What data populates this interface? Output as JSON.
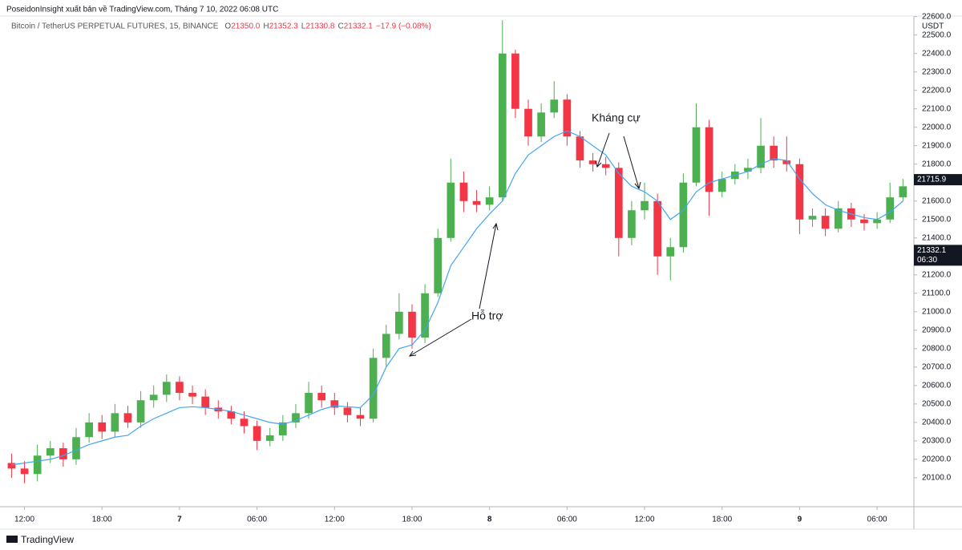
{
  "header": {
    "publisher": "PoseidonInsight xuất bản về TradingView.com, Tháng 7 10, 2022 06:08 UTC",
    "symbol": "Bitcoin / TetherUS PERPETUAL FUTURES, 15, BINANCE",
    "ohlc": [
      {
        "key": "O",
        "value": "21350.0"
      },
      {
        "key": "H",
        "value": "21352.3"
      },
      {
        "key": "L",
        "value": "21330.8"
      },
      {
        "key": "C",
        "value": "21332.1"
      }
    ],
    "change": "−17.9 (−0.08%)"
  },
  "footer": {
    "brand": "TradingView"
  },
  "chart_data": {
    "type": "candlestick",
    "y_unit": "USDT",
    "up_color": "#4caf50",
    "down_color": "#f23645",
    "x": [
      11,
      12,
      13,
      14,
      15,
      16,
      17,
      18,
      19,
      20,
      21,
      22,
      23,
      24,
      25,
      26,
      27,
      28,
      29,
      30,
      31,
      32,
      33,
      34,
      35,
      36,
      37,
      38,
      39,
      40,
      41,
      42,
      43,
      44,
      45,
      46,
      47,
      48,
      49,
      50,
      51,
      52,
      53,
      54,
      55,
      56,
      57,
      58,
      59,
      60,
      61,
      62,
      63,
      64,
      65,
      66,
      67,
      68,
      69,
      70,
      71,
      72,
      73,
      74,
      75,
      76,
      77,
      78,
      79,
      80
    ],
    "open": [
      20180,
      20150,
      20120,
      20220,
      20260,
      20200,
      20320,
      20400,
      20350,
      20450,
      20400,
      20520,
      20550,
      20620,
      20560,
      20540,
      20480,
      20460,
      20420,
      20380,
      20300,
      20330,
      20400,
      20450,
      20560,
      20520,
      20480,
      20440,
      20420,
      20750,
      20880,
      21000,
      20860,
      21100,
      21400,
      21700,
      21600,
      21580,
      21620,
      22400,
      22100,
      21950,
      22080,
      22150,
      21950,
      21820,
      21800,
      21780,
      21400,
      21550,
      21600,
      21300,
      21350,
      21700,
      22000,
      21650,
      21720,
      21760,
      21780,
      21900,
      21820,
      21800,
      21500,
      21520,
      21450,
      21560,
      21500,
      21480,
      21500,
      21620
    ],
    "high": [
      20230,
      20190,
      20280,
      20300,
      20290,
      20370,
      20450,
      20440,
      20500,
      20490,
      20570,
      20600,
      20660,
      20650,
      20600,
      20580,
      20520,
      20490,
      20460,
      20410,
      20370,
      20440,
      20500,
      20620,
      20600,
      20560,
      20510,
      20480,
      20800,
      20930,
      21100,
      21040,
      21150,
      21450,
      21830,
      21760,
      21660,
      21680,
      22580,
      22420,
      22150,
      22130,
      22250,
      22180,
      21980,
      21860,
      21840,
      21810,
      21600,
      21700,
      21640,
      21400,
      21750,
      22130,
      22040,
      21760,
      21800,
      21830,
      22050,
      21950,
      21950,
      21830,
      21560,
      21560,
      21600,
      21590,
      21530,
      21540,
      21700,
      21720
    ],
    "low": [
      20100,
      20070,
      20080,
      20180,
      20160,
      20170,
      20290,
      20310,
      20320,
      20370,
      20370,
      20480,
      20510,
      20520,
      20500,
      20440,
      20420,
      20390,
      20340,
      20250,
      20270,
      20300,
      20370,
      20420,
      20480,
      20440,
      20400,
      20380,
      20400,
      20700,
      20850,
      20800,
      20830,
      21080,
      21380,
      21540,
      21540,
      21550,
      21600,
      22050,
      21900,
      21920,
      22050,
      21900,
      21780,
      21760,
      21740,
      21300,
      21360,
      21500,
      21200,
      21170,
      21320,
      21680,
      21520,
      21620,
      21690,
      21720,
      21750,
      21780,
      21760,
      21420,
      21460,
      21410,
      21430,
      21460,
      21440,
      21450,
      21480,
      21600
    ],
    "close": [
      20150,
      20120,
      20220,
      20260,
      20200,
      20320,
      20400,
      20350,
      20450,
      20400,
      20520,
      20550,
      20620,
      20560,
      20540,
      20480,
      20460,
      20420,
      20380,
      20300,
      20330,
      20400,
      20450,
      20560,
      20520,
      20480,
      20440,
      20420,
      20750,
      20880,
      21000,
      20860,
      21100,
      21400,
      21700,
      21600,
      21580,
      21620,
      22400,
      22100,
      21950,
      22080,
      22150,
      21950,
      21820,
      21800,
      21780,
      21400,
      21550,
      21600,
      21300,
      21350,
      21700,
      22000,
      21650,
      21720,
      21760,
      21780,
      21900,
      21820,
      21800,
      21500,
      21520,
      21450,
      21560,
      21500,
      21480,
      21500,
      21620,
      21680
    ],
    "moving_average": {
      "color": "#42a5f5",
      "values": [
        20170,
        20180,
        20190,
        20200,
        20220,
        20250,
        20280,
        20300,
        20320,
        20330,
        20380,
        20420,
        20450,
        20480,
        20485,
        20480,
        20470,
        20460,
        20440,
        20420,
        20400,
        20390,
        20410,
        20440,
        20470,
        20490,
        20485,
        20480,
        20550,
        20700,
        20800,
        20820,
        20900,
        21050,
        21250,
        21350,
        21450,
        21530,
        21600,
        21750,
        21850,
        21900,
        21950,
        21980,
        21950,
        21900,
        21850,
        21750,
        21680,
        21650,
        21600,
        21500,
        21550,
        21650,
        21700,
        21720,
        21740,
        21760,
        21800,
        21830,
        21820,
        21720,
        21640,
        21580,
        21550,
        21530,
        21510,
        21500,
        21540,
        21600
      ]
    },
    "xlim": [
      10.6,
      80.85
    ],
    "ylim": [
      19943,
      22603
    ],
    "xticks": [
      {
        "value": 12,
        "label": "12:00"
      },
      {
        "value": 18,
        "label": "18:00"
      },
      {
        "value": 24,
        "label": "7"
      },
      {
        "value": 30,
        "label": "06:00"
      },
      {
        "value": 36,
        "label": "12:00"
      },
      {
        "value": 42,
        "label": "18:00"
      },
      {
        "value": 48,
        "label": "8"
      },
      {
        "value": 54,
        "label": "06:00"
      },
      {
        "value": 60,
        "label": "12:00"
      },
      {
        "value": 66,
        "label": "18:00"
      },
      {
        "value": 72,
        "label": "9"
      },
      {
        "value": 78,
        "label": "06:00"
      }
    ],
    "yticks": [
      {
        "value": 20100,
        "label": "20100.0"
      },
      {
        "value": 20200,
        "label": "20200.0"
      },
      {
        "value": 20300,
        "label": "20300.0"
      },
      {
        "value": 20400,
        "label": "20400.0"
      },
      {
        "value": 20500,
        "label": "20500.0"
      },
      {
        "value": 20600,
        "label": "20600.0"
      },
      {
        "value": 20700,
        "label": "20700.0"
      },
      {
        "value": 20800,
        "label": "20800.0"
      },
      {
        "value": 20900,
        "label": "20900.0"
      },
      {
        "value": 21000,
        "label": "21000.0"
      },
      {
        "value": 21100,
        "label": "21100.0"
      },
      {
        "value": 21200,
        "label": "21200.0"
      },
      {
        "value": 21300,
        "label": "21300.0"
      },
      {
        "value": 21400,
        "label": "21400.0"
      },
      {
        "value": 21500,
        "label": "21500.0"
      },
      {
        "value": 21600,
        "label": "21600.0"
      },
      {
        "value": 21700,
        "label": "21700.0"
      },
      {
        "value": 21800,
        "label": "21800.0"
      },
      {
        "value": 21900,
        "label": "21900.0"
      },
      {
        "value": 22000,
        "label": "22000.0"
      },
      {
        "value": 22100,
        "label": "22100.0"
      },
      {
        "value": 22200,
        "label": "22200.0"
      },
      {
        "value": 22300,
        "label": "22300.0"
      },
      {
        "value": 22400,
        "label": "22400.0"
      },
      {
        "value": 22500,
        "label": "22500.0"
      },
      {
        "value": 22600,
        "label": "22600.0"
      }
    ],
    "price_markers": [
      {
        "value": 21715.9,
        "label": "21715.9"
      },
      {
        "value": 21332.1,
        "label": "21332.1",
        "countdown": "06:30"
      }
    ],
    "annotations": [
      "Kháng cự",
      "Hỗ trợ"
    ]
  }
}
